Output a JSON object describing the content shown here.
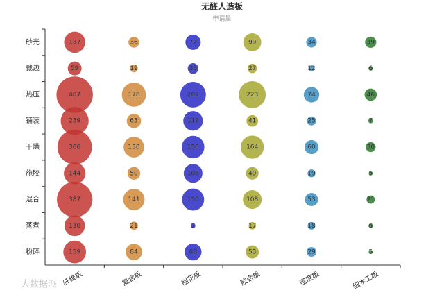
{
  "chart_data": {
    "type": "bubble",
    "title": "无醛人造板",
    "subtitle": "申请量",
    "categories": [
      "纤维板",
      "复合板",
      "刨花板",
      "胶合板",
      "密度板",
      "细木工板"
    ],
    "y_categories": [
      "砂光",
      "裁边",
      "热压",
      "铺装",
      "干燥",
      "施胶",
      "混合",
      "蒸煮",
      "粉碎"
    ],
    "series": [
      {
        "color": "#c23531",
        "values": [
          137,
          59,
          407,
          239,
          366,
          144,
          387,
          130,
          159
        ]
      },
      {
        "color": "#d08a3a",
        "values": [
          36,
          19,
          178,
          63,
          130,
          50,
          141,
          21,
          84
        ]
      },
      {
        "color": "#2a2ac4",
        "values": [
          72,
          35,
          202,
          118,
          156,
          108,
          150,
          7,
          88
        ]
      },
      {
        "color": "#a6a630",
        "values": [
          99,
          27,
          223,
          41,
          164,
          49,
          108,
          17,
          53
        ]
      },
      {
        "color": "#3a8ec0",
        "values": [
          34,
          12,
          74,
          25,
          60,
          19,
          53,
          18,
          29
        ]
      },
      {
        "color": "#2e7a2e",
        "values": [
          39,
          6,
          46,
          7,
          30,
          5,
          21,
          6,
          5
        ]
      }
    ],
    "watermark": "大数据派"
  }
}
